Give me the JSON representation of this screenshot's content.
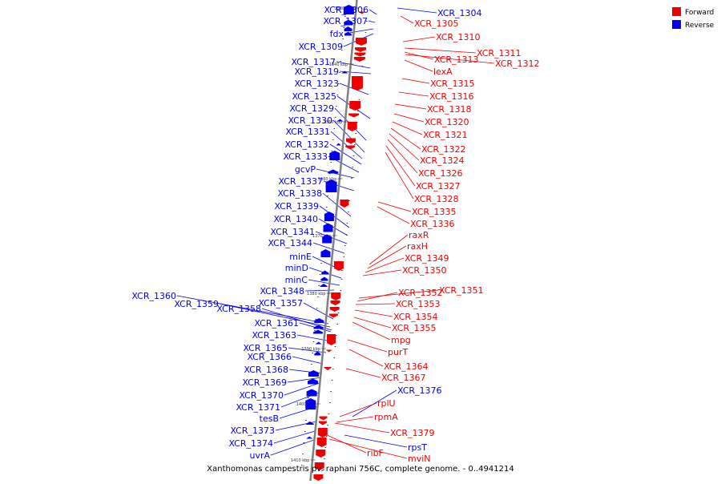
{
  "title": "Xanthomonas campestris pv. raphani 756C, complete genome. - 0..4941214",
  "legend": [
    {
      "label": "Forward",
      "color": "#ee0000"
    },
    {
      "label": "Reverse",
      "color": "#0000ee"
    }
  ],
  "colors": {
    "forward": "#ee0000",
    "reverse": "#0000ee",
    "axis": "#808080"
  },
  "scale_ticks": [
    "1330 kbp",
    "1340 kbp",
    "1350 kbp",
    "1360 kbp",
    "1370 kbp",
    "1380 kbp",
    "1390 kbp",
    "1400 kbp",
    "1410 kbp"
  ],
  "reverse_genes": [
    "XCR_1306",
    "XCR_1307",
    "fdx",
    "XCR_1309",
    "XCR_1317",
    "XCR_1319",
    "XCR_1323",
    "XCR_1325",
    "XCR_1329",
    "XCR_1330",
    "XCR_1331",
    "XCR_1332",
    "XCR_1333",
    "gcvP",
    "XCR_1337",
    "XCR_1338",
    "XCR_1339",
    "XCR_1340",
    "XCR_1341",
    "XCR_1344",
    "minE",
    "minD",
    "minC",
    "XCR_1348",
    "XCR_1357",
    "XCR_1360",
    "XCR_1359",
    "XCR_1358",
    "XCR_1361",
    "XCR_1363",
    "XCR_1365",
    "XCR_1366",
    "XCR_1368",
    "XCR_1369",
    "XCR_1370",
    "XCR_1371",
    "tesB",
    "XCR_1373",
    "XCR_1374",
    "uvrA",
    "XCR_1304",
    "XCR_1376",
    "rpsT"
  ],
  "forward_genes": [
    "XCR_1305",
    "XCR_1310",
    "XCR_1311",
    "XCR_1313",
    "XCR_1312",
    "lexA",
    "XCR_1315",
    "XCR_1316",
    "XCR_1318",
    "XCR_1320",
    "XCR_1321",
    "XCR_1322",
    "XCR_1324",
    "XCR_1326",
    "XCR_1327",
    "XCR_1328",
    "XCR_1335",
    "XCR_1336",
    "raxR",
    "raxH",
    "XCR_1349",
    "XCR_1350",
    "XCR_1351",
    "XCR_1352",
    "XCR_1353",
    "XCR_1354",
    "XCR_1355",
    "mpg",
    "purT",
    "XCR_1364",
    "XCR_1367",
    "rplU",
    "rpmA",
    "XCR_1379",
    "ribF",
    "mviN"
  ]
}
